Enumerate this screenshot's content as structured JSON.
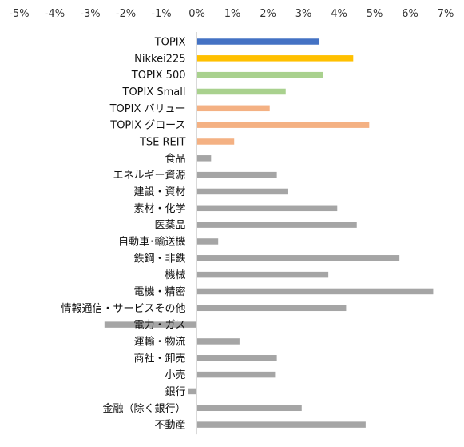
{
  "chart_data": {
    "type": "bar",
    "orientation": "horizontal",
    "title": "",
    "xlabel": "",
    "ylabel": "",
    "xlim": [
      -5,
      7
    ],
    "x_ticks": [
      "-5%",
      "-4%",
      "-3%",
      "-2%",
      "-1%",
      "0%",
      "1%",
      "2%",
      "3%",
      "4%",
      "5%",
      "6%",
      "7%"
    ],
    "x_axis_position": "top",
    "grid": false,
    "legend": "none",
    "categories": [
      "TOPIX",
      "Nikkei225",
      "TOPIX 500",
      "TOPIX Small",
      "TOPIX バリュー",
      "TOPIX グロース",
      "TSE REIT",
      "食品",
      "エネルギー資源",
      "建設・資材",
      "素材・化学",
      "医薬品",
      "自動車･輸送機",
      "鉄鋼・非鉄",
      "機械",
      "電機・精密",
      "情報通信・サービスその他",
      "電力・ガス",
      "運輸・物流",
      "商社・卸売",
      "小売",
      "銀行",
      "金融（除く銀行）",
      "不動産"
    ],
    "values": [
      3.45,
      4.4,
      3.55,
      2.5,
      2.05,
      4.85,
      1.05,
      0.4,
      2.25,
      2.55,
      3.95,
      4.5,
      0.6,
      5.7,
      3.7,
      6.65,
      4.2,
      -2.6,
      1.2,
      2.25,
      2.2,
      -0.25,
      2.95,
      4.75
    ],
    "colors": [
      "#4472c4",
      "#ffc000",
      "#a9d18e",
      "#a9d18e",
      "#f4b183",
      "#f4b183",
      "#f4b183",
      "#a5a5a5",
      "#a5a5a5",
      "#a5a5a5",
      "#a5a5a5",
      "#a5a5a5",
      "#a5a5a5",
      "#a5a5a5",
      "#a5a5a5",
      "#a5a5a5",
      "#a5a5a5",
      "#a5a5a5",
      "#a5a5a5",
      "#a5a5a5",
      "#a5a5a5",
      "#a5a5a5",
      "#a5a5a5",
      "#a5a5a5"
    ],
    "axis_color": "#d9d9d9"
  }
}
